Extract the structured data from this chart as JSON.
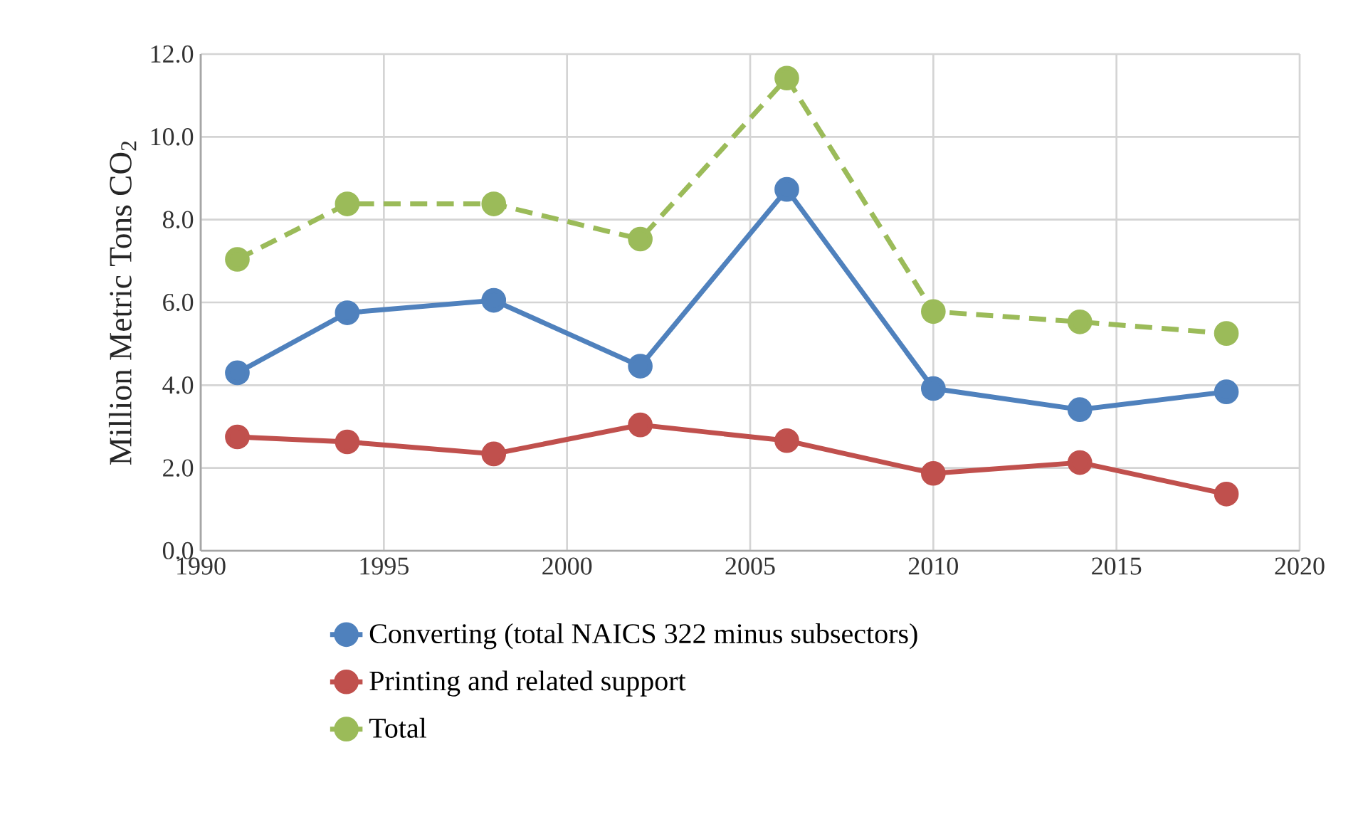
{
  "chart_data": {
    "type": "line",
    "ylabel": "Million Metric Tons CO$_{2}$",
    "x": [
      1991,
      1994,
      1998,
      2002,
      2006,
      2010,
      2014,
      2018
    ],
    "series": [
      {
        "name": "Converting (total NAICS 322 minus subsectors)",
        "color": "#4f81bd",
        "line_style": "solid",
        "values": [
          4.3,
          5.75,
          6.05,
          4.46,
          8.73,
          3.92,
          3.41,
          3.84
        ]
      },
      {
        "name": "Printing and related support",
        "color": "#c0504d",
        "line_style": "solid",
        "values": [
          2.75,
          2.63,
          2.34,
          3.04,
          2.66,
          1.87,
          2.13,
          1.37
        ]
      },
      {
        "name": "Total",
        "color": "#9bbb59",
        "line_style": "dashed",
        "values": [
          7.04,
          8.38,
          8.38,
          7.53,
          11.42,
          5.78,
          5.53,
          5.25
        ]
      }
    ],
    "xlim": [
      1990,
      2020
    ],
    "xticks": [
      1990,
      1995,
      2000,
      2005,
      2010,
      2015,
      2020
    ],
    "ylim": [
      0,
      12
    ],
    "yticks": [
      {
        "value": 0,
        "label": "0.0"
      },
      {
        "value": 2,
        "label": "2.0"
      },
      {
        "value": 4,
        "label": "4.0"
      },
      {
        "value": 6,
        "label": "6.0"
      },
      {
        "value": 8,
        "label": "8.0"
      },
      {
        "value": 10,
        "label": "10.0"
      },
      {
        "value": 12,
        "label": "12.0"
      }
    ],
    "grid": true,
    "legend": "bottom",
    "marker": "circle"
  }
}
